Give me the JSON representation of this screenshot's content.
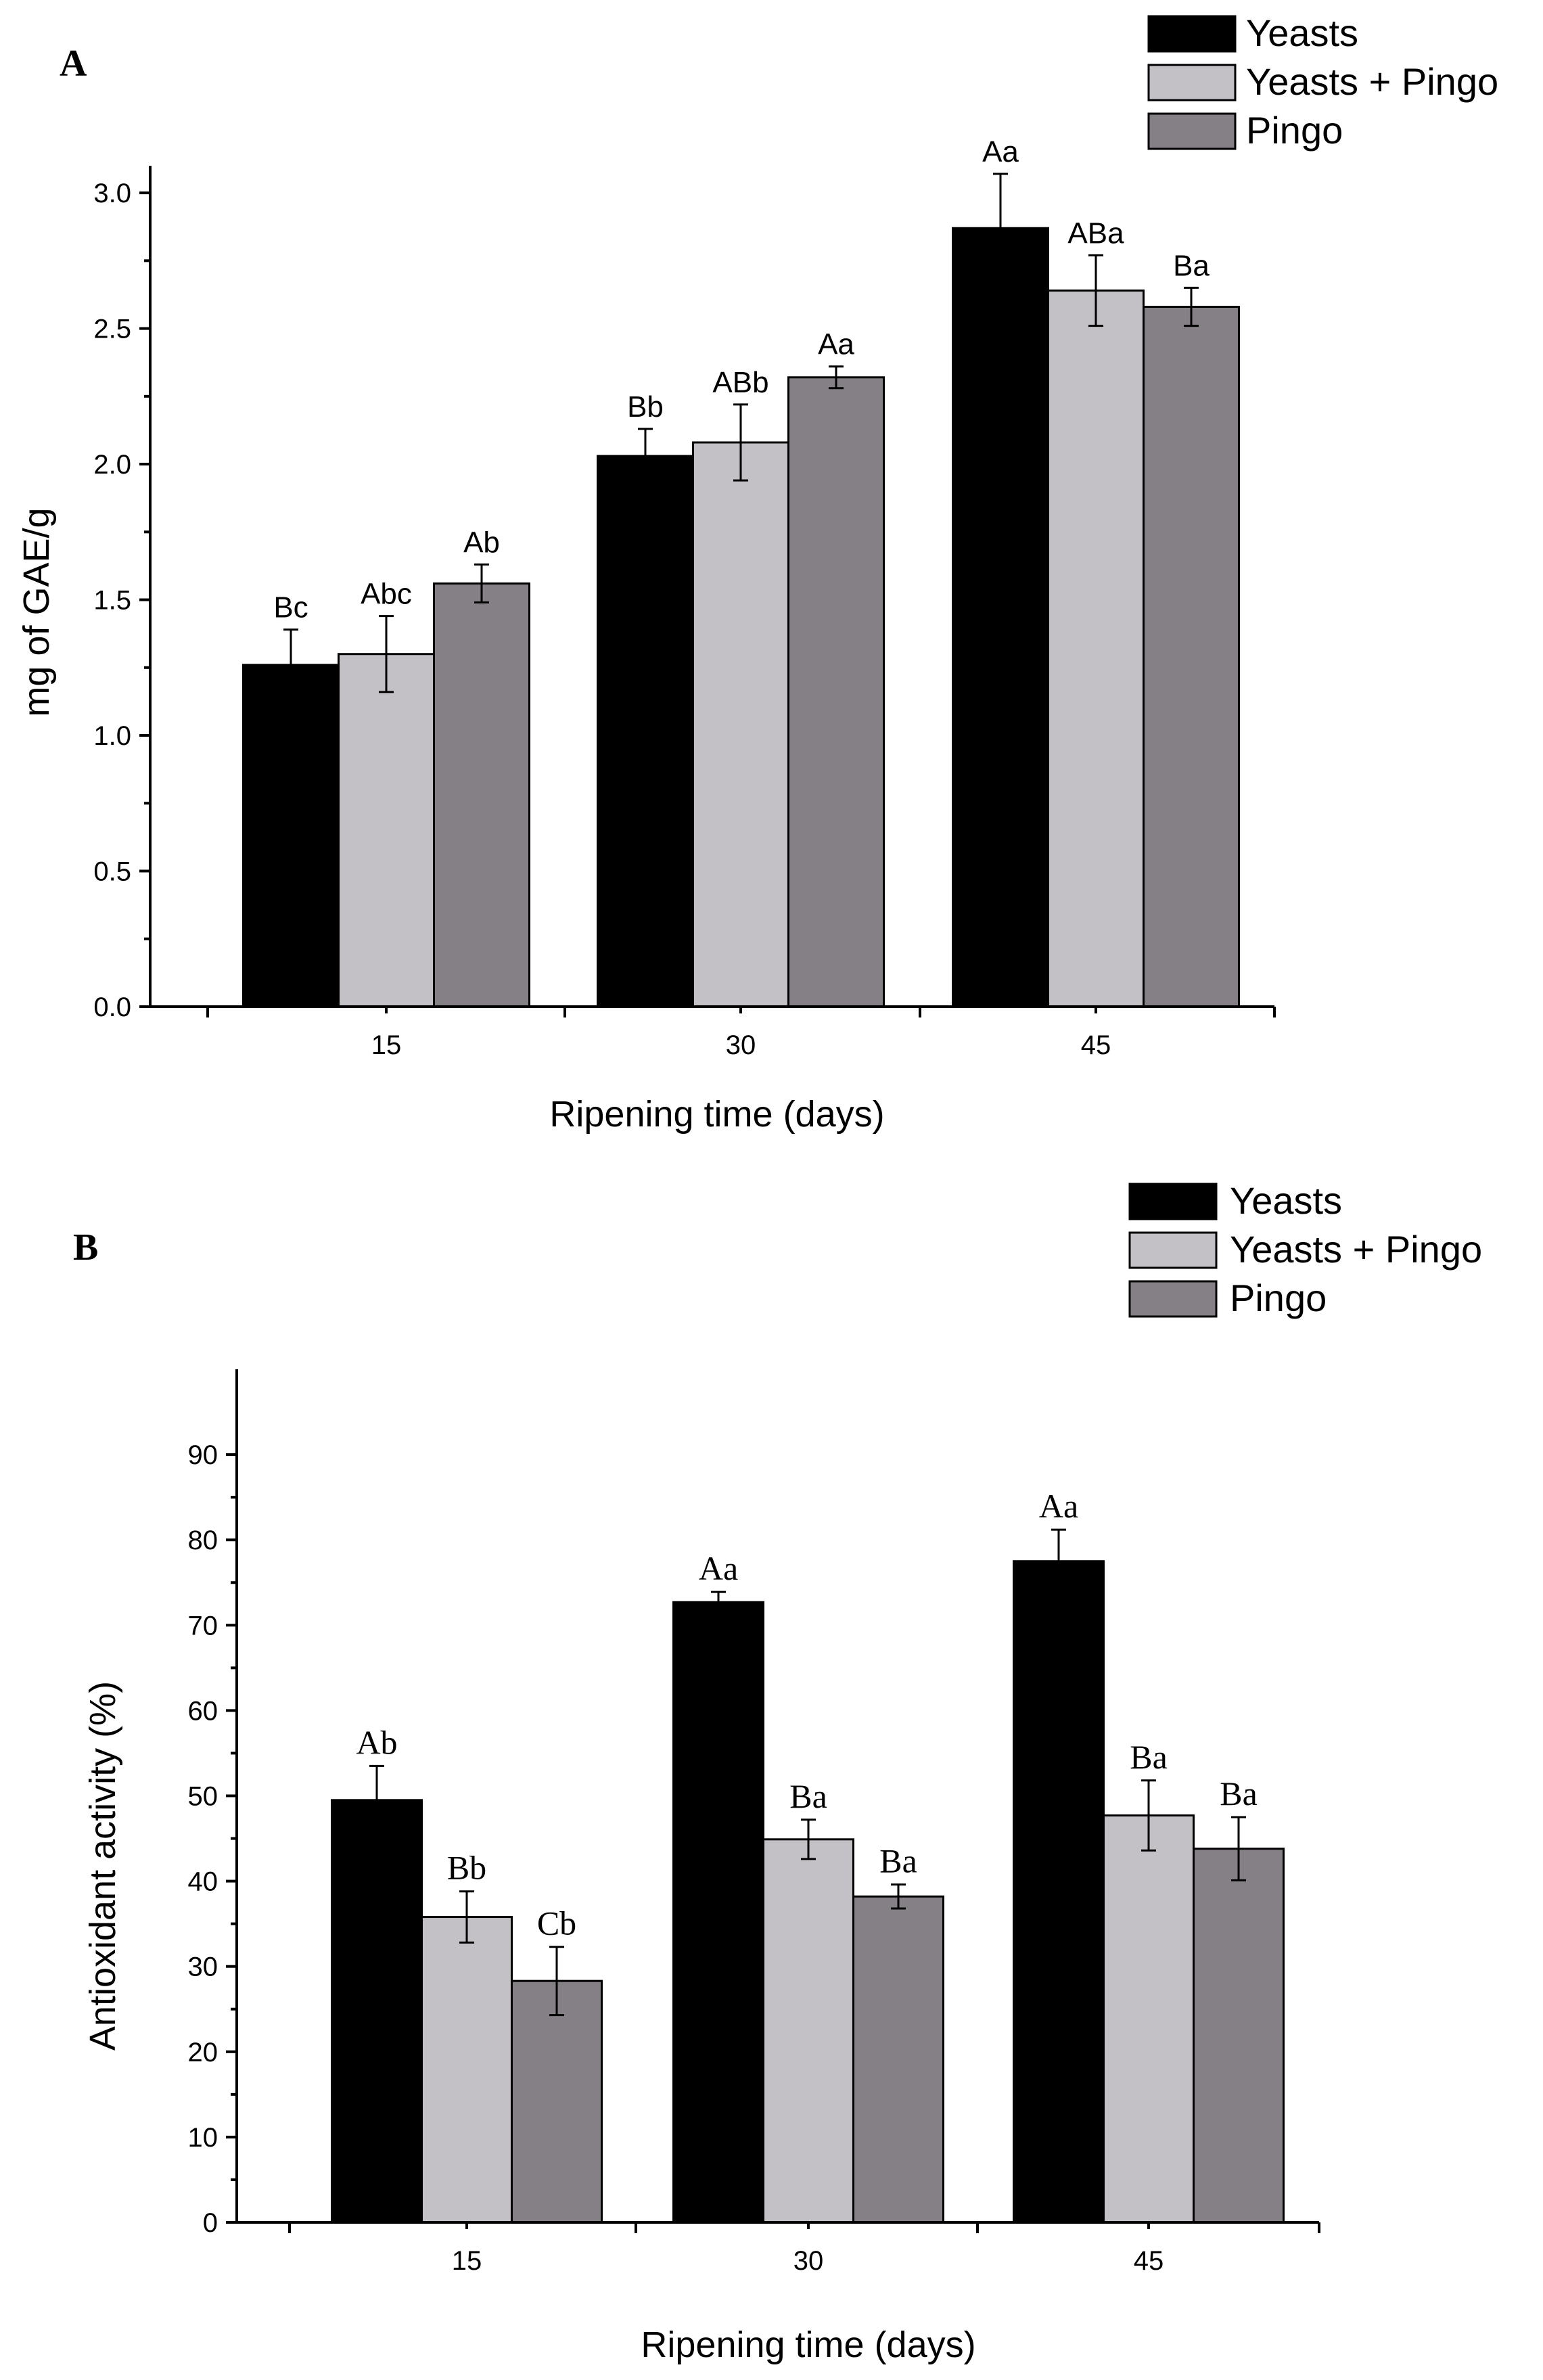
{
  "chart_data": [
    {
      "type": "bar",
      "panel": "A",
      "title": "",
      "xlabel": "Ripening time (days)",
      "ylabel": "mg of GAE/g",
      "ylim": [
        0,
        3.1
      ],
      "yticks": [
        0.0,
        0.5,
        1.0,
        1.5,
        2.0,
        2.5,
        3.0
      ],
      "ytick_labels": [
        "0.0",
        "0.5",
        "1.0",
        "1.5",
        "2.0",
        "2.5",
        "3.0"
      ],
      "categories": [
        "15",
        "30",
        "45"
      ],
      "legend_position": "top-right",
      "series": [
        {
          "name": "Yeasts",
          "color": "#000000",
          "values": [
            1.26,
            2.03,
            2.87
          ],
          "errors": [
            0.13,
            0.1,
            0.2
          ],
          "labels": [
            "Bc",
            "Bb",
            "Aa"
          ]
        },
        {
          "name": "Yeasts + Pingo",
          "color": "#c4c1c6",
          "values": [
            1.3,
            2.08,
            2.64
          ],
          "errors": [
            0.14,
            0.14,
            0.13
          ],
          "labels": [
            "Abc",
            "ABb",
            "ABa"
          ]
        },
        {
          "name": "Pingo",
          "color": "#858086",
          "values": [
            1.56,
            2.32,
            2.58
          ],
          "errors": [
            0.07,
            0.04,
            0.07
          ],
          "labels": [
            "Ab",
            "Aa",
            "Ba"
          ]
        }
      ]
    },
    {
      "type": "bar",
      "panel": "B",
      "title": "",
      "xlabel": "Ripening time (days)",
      "ylabel": "Antioxidant activity (%)",
      "ylim": [
        0,
        100
      ],
      "yticks": [
        0,
        10,
        20,
        30,
        40,
        50,
        60,
        70,
        80,
        90
      ],
      "ytick_labels": [
        "0",
        "10",
        "20",
        "30",
        "40",
        "50",
        "60",
        "70",
        "80",
        "90"
      ],
      "categories": [
        "15",
        "30",
        "45"
      ],
      "legend_position": "top-right",
      "series": [
        {
          "name": "Yeasts",
          "color": "#000000",
          "values": [
            49.5,
            72.7,
            77.5
          ],
          "errors": [
            4.0,
            1.2,
            3.7
          ],
          "labels": [
            "Ab",
            "Aa",
            "Aa"
          ]
        },
        {
          "name": "Yeasts + Pingo",
          "color": "#c4c1c6",
          "values": [
            35.8,
            44.9,
            47.7
          ],
          "errors": [
            3.0,
            2.3,
            4.1
          ],
          "labels": [
            "Bb",
            "Ba",
            "Ba"
          ]
        },
        {
          "name": "Pingo",
          "color": "#858086",
          "values": [
            28.3,
            38.2,
            43.8
          ],
          "errors": [
            4.0,
            1.4,
            3.7
          ],
          "labels": [
            "Cb",
            "Ba",
            "Ba"
          ]
        }
      ]
    }
  ]
}
